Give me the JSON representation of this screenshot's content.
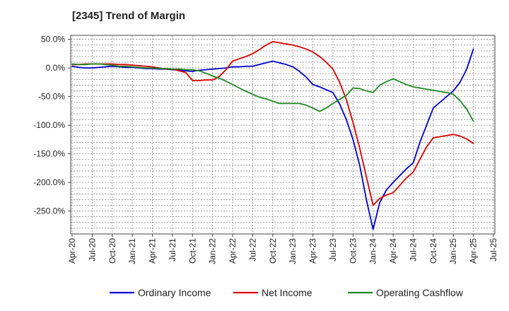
{
  "chart_data": {
    "type": "line",
    "title": "[2345]  Trend of Margin",
    "xlabel": "",
    "ylabel": "",
    "ylim": [
      -290,
      57
    ],
    "y_ticks": [
      {
        "value": 50,
        "label": "50.0%"
      },
      {
        "value": 0,
        "label": "0.0%"
      },
      {
        "value": -50,
        "label": "-50.0%"
      },
      {
        "value": -100,
        "label": "-100.0%"
      },
      {
        "value": -150,
        "label": "-150.0%"
      },
      {
        "value": -200,
        "label": "-200.0%"
      },
      {
        "value": -250,
        "label": "-250.0%"
      }
    ],
    "x_tick_labels": [
      "Apr-20",
      "Jul-20",
      "Oct-20",
      "Jan-21",
      "Apr-21",
      "Jul-21",
      "Oct-21",
      "Jan-22",
      "Apr-22",
      "Jul-22",
      "Oct-22",
      "Jan-23",
      "Apr-23",
      "Jul-23",
      "Oct-23",
      "Jan-24",
      "Apr-24",
      "Jul-24",
      "Oct-24",
      "Jan-25",
      "Apr-25",
      "Jul-25"
    ],
    "x": [
      "Apr-20",
      "May-20",
      "Jun-20",
      "Jul-20",
      "Aug-20",
      "Sep-20",
      "Oct-20",
      "Nov-20",
      "Dec-20",
      "Jan-21",
      "Feb-21",
      "Mar-21",
      "Apr-21",
      "May-21",
      "Jun-21",
      "Jul-21",
      "Aug-21",
      "Sep-21",
      "Oct-21",
      "Nov-21",
      "Dec-21",
      "Jan-22",
      "Feb-22",
      "Mar-22",
      "Apr-22",
      "May-22",
      "Jun-22",
      "Jul-22",
      "Aug-22",
      "Sep-22",
      "Oct-22",
      "Nov-22",
      "Dec-22",
      "Jan-23",
      "Feb-23",
      "Mar-23",
      "Apr-23",
      "May-23",
      "Jun-23",
      "Jul-23",
      "Aug-23",
      "Sep-23",
      "Oct-23",
      "Nov-23",
      "Dec-23",
      "Jan-24",
      "Feb-24",
      "Mar-24",
      "Apr-24",
      "May-24",
      "Jun-24",
      "Jul-24",
      "Aug-24",
      "Sep-24",
      "Oct-24",
      "Nov-24",
      "Dec-24",
      "Jan-25",
      "Feb-25",
      "Mar-25",
      "Apr-25"
    ],
    "grid": true,
    "legend_position": "bottom",
    "series": [
      {
        "name": "Ordinary Income",
        "color": "#0000cc",
        "values": [
          3,
          1,
          0,
          0,
          1,
          2,
          3,
          2,
          1,
          1,
          0,
          -1,
          -1,
          -2,
          -2,
          -3,
          -4,
          -5,
          -6,
          -4,
          -3,
          -2,
          -1,
          0,
          2,
          2,
          3,
          3,
          6,
          9,
          12,
          9,
          6,
          2,
          -6,
          -16,
          -29,
          -33,
          -38,
          -43,
          -63,
          -90,
          -125,
          -170,
          -230,
          -282,
          -235,
          -213,
          -200,
          -188,
          -176,
          -166,
          -130,
          -100,
          -70,
          -60,
          -50,
          -40,
          -25,
          -2,
          33
        ]
      },
      {
        "name": "Net Income",
        "color": "#dd0000",
        "values": [
          6,
          6,
          7,
          7,
          7,
          7,
          7,
          6,
          6,
          5,
          4,
          3,
          2,
          0,
          -2,
          -2,
          -5,
          -8,
          -22,
          -22,
          -21,
          -21,
          -15,
          -3,
          12,
          16,
          20,
          25,
          32,
          40,
          46,
          44,
          42,
          40,
          37,
          33,
          28,
          20,
          10,
          -2,
          -25,
          -55,
          -95,
          -140,
          -190,
          -240,
          -228,
          -222,
          -218,
          -205,
          -192,
          -182,
          -160,
          -138,
          -122,
          -120,
          -118,
          -116,
          -119,
          -124,
          -132
        ]
      },
      {
        "name": "Operating Cashflow",
        "color": "#228822",
        "values": [
          7,
          6,
          6,
          7,
          7,
          6,
          5,
          3,
          3,
          2,
          1,
          0,
          0,
          -1,
          -1,
          -2,
          -2,
          -3,
          -3,
          -5,
          -9,
          -14,
          -18,
          -23,
          -29,
          -35,
          -41,
          -46,
          -51,
          -54,
          -58,
          -62,
          -62,
          -62,
          -62,
          -65,
          -70,
          -76,
          -70,
          -62,
          -55,
          -48,
          -35,
          -36,
          -40,
          -43,
          -30,
          -24,
          -19,
          -24,
          -29,
          -33,
          -35,
          -37,
          -39,
          -41,
          -43,
          -46,
          -57,
          -72,
          -93
        ]
      }
    ]
  }
}
